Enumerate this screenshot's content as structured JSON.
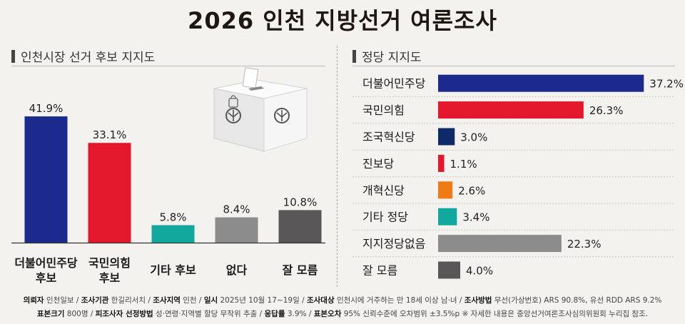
{
  "title": "2026 인천 지방선거 여론조사",
  "left_section": {
    "heading": "인천시장 선거 후보 지지도"
  },
  "right_section": {
    "heading": "정당 지지도"
  },
  "chart_data": [
    {
      "type": "bar",
      "title": "인천시장 선거 후보 지지도",
      "categories": [
        [
          "더불어민주당",
          "후보"
        ],
        [
          "국민의힘",
          "후보"
        ],
        [
          "기타 후보"
        ],
        [
          "없다"
        ],
        [
          "잘 모름"
        ]
      ],
      "values": [
        41.9,
        33.1,
        5.8,
        8.4,
        10.8
      ],
      "value_labels": [
        "41.9%",
        "33.1%",
        "5.8%",
        "8.4%",
        "10.8%"
      ],
      "colors": [
        "#1b2a8c",
        "#e3182d",
        "#13a89e",
        "#8c8c8c",
        "#595657"
      ],
      "ylim": [
        0,
        45
      ]
    },
    {
      "type": "bar",
      "orientation": "horizontal",
      "title": "정당 지지도",
      "categories": [
        "더불어민주당",
        "국민의힘",
        "조국혁신당",
        "진보당",
        "개혁신당",
        "기타 정당",
        "지지정당없음",
        "잘 모름"
      ],
      "values": [
        37.2,
        26.3,
        3.0,
        1.1,
        2.6,
        3.4,
        22.3,
        4.0
      ],
      "value_labels": [
        "37.2%",
        "26.3%",
        "3.0%",
        "1.1%",
        "2.6%",
        "3.4%",
        "22.3%",
        "4.0%"
      ],
      "colors": [
        "#1b2a8c",
        "#e3182d",
        "#0f2a66",
        "#e3182d",
        "#f07a14",
        "#13a89e",
        "#8c8c8c",
        "#595657"
      ],
      "xlim": [
        0,
        40
      ]
    }
  ],
  "footer": {
    "line1": [
      {
        "k": "의뢰자",
        "v": "인천일보"
      },
      {
        "k": "조사기관",
        "v": "한길리서치"
      },
      {
        "k": "조사지역",
        "v": "인천"
      },
      {
        "k": "일시",
        "v": "2025년 10월 17~19일"
      },
      {
        "k": "조사대상",
        "v": "인천시에 거주하는 만 18세 이상 남·녀"
      },
      {
        "k": "조사방법",
        "v": "무선(가상번호) ARS 90.8%, 유선 RDD ARS 9.2%"
      }
    ],
    "line2": [
      {
        "k": "표본크기",
        "v": "800명"
      },
      {
        "k": "피조사자 선정방법",
        "v": "성·연령·지역별 할당 무작위 추출"
      },
      {
        "k": "응답률",
        "v": "3.9%"
      },
      {
        "k": "표본오차",
        "v": "95% 신뢰수준에 오차범위 ±3.5%p"
      }
    ],
    "note": "※ 자세한 내용은 중앙선거여론조사심의위원회 누리집 참조."
  }
}
